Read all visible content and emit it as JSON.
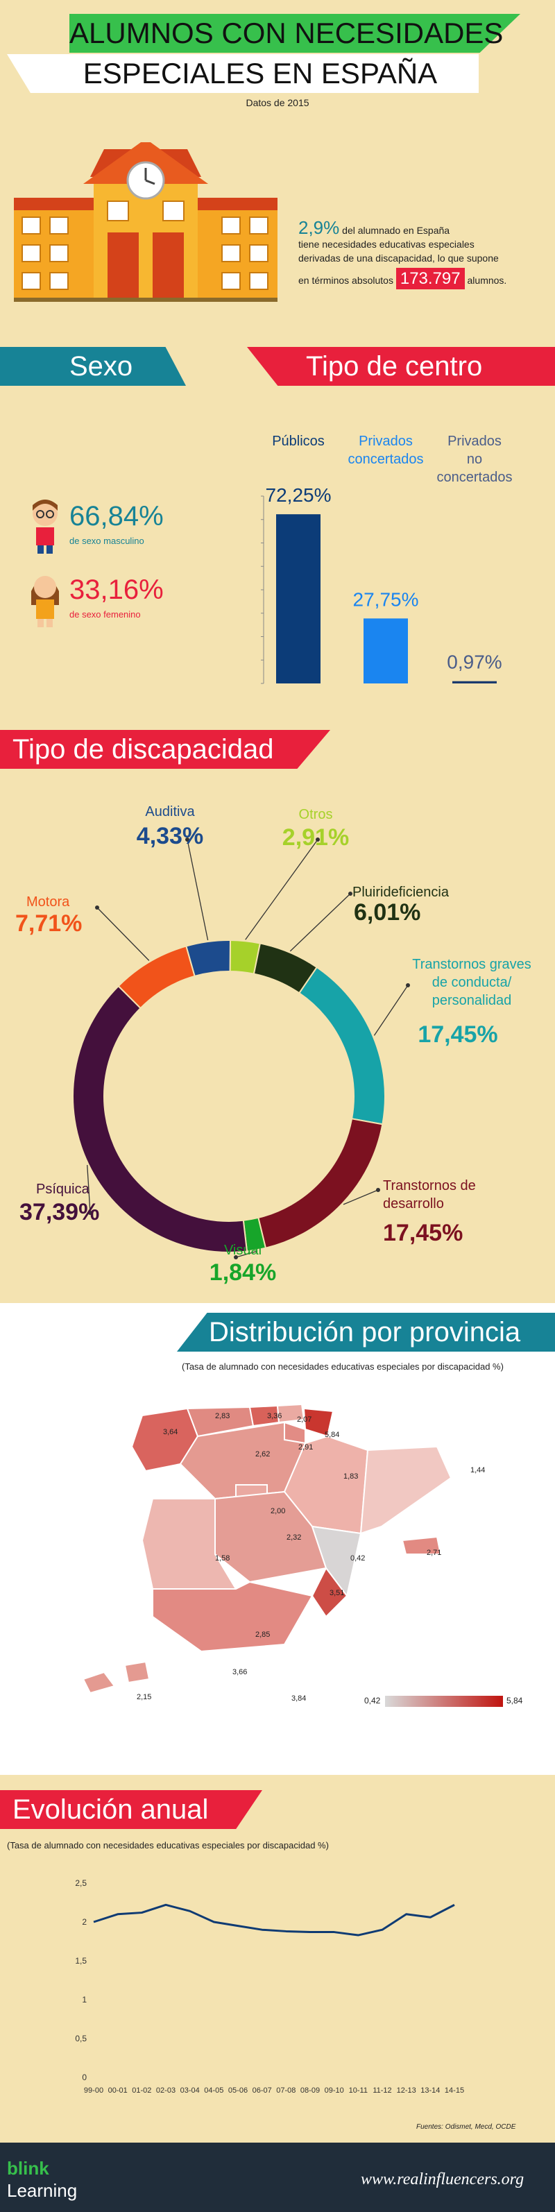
{
  "header": {
    "title_line1": "ALUMNOS CON NECESIDADES",
    "title_line2": "ESPECIALES EN ESPAÑA",
    "date": "Datos de 2015"
  },
  "intro": {
    "percent": "2,9%",
    "text_line1": " del alumnado en España",
    "text_line2": "tiene necesidades educativas especiales",
    "text_line3": "derivadas de una discapacidad, lo que supone",
    "text_line4a": "en términos absolutos",
    "total": "173.797",
    "text_line4b": "alumnos."
  },
  "sexo": {
    "banner": "Sexo",
    "male_pct": "66,84%",
    "male_label": "de sexo masculino",
    "female_pct": "33,16%",
    "female_label": "de sexo femenino"
  },
  "centro": {
    "banner": "Tipo de centro"
  },
  "colors": {
    "bar_publicos": "#0c3c78",
    "bar_concertados": "#1a85f0",
    "bar_no_concertados": "#1a3a6e",
    "teal": "#178396",
    "red": "#e8203c"
  },
  "discapacidad": {
    "banner": "Tipo de discapacidad"
  },
  "provincia": {
    "banner": "Distribución por provincia",
    "subtitle": "(Tasa de alumnado con necesidades educativas especiales por discapacidad %)",
    "values": [
      {
        "label": "3,64"
      },
      {
        "label": "2,83"
      },
      {
        "label": "3,36"
      },
      {
        "label": "2,07"
      },
      {
        "label": "5,84"
      },
      {
        "label": "2,91"
      },
      {
        "label": "2,62"
      },
      {
        "label": "1,83"
      },
      {
        "label": "1,44"
      },
      {
        "label": "2,00"
      },
      {
        "label": "2,32"
      },
      {
        "label": "1,58"
      },
      {
        "label": "0,42"
      },
      {
        "label": "2,71"
      },
      {
        "label": "3,51"
      },
      {
        "label": "2,85"
      },
      {
        "label": "3,66"
      },
      {
        "label": "2,15"
      },
      {
        "label": "3,84"
      }
    ],
    "legend_min": "0,42",
    "legend_max": "5,84"
  },
  "evolucion": {
    "banner": "Evolución anual",
    "subtitle": "(Tasa de alumnado con necesidades educativas especiales por discapacidad %)",
    "sources": "Fuentes: Odismet, Mecd, OCDE"
  },
  "footer": {
    "brand_line1": "blink",
    "brand_line2": "Learning",
    "url": "www.realinfluencers.org"
  },
  "chart_data": [
    {
      "type": "bar",
      "categories": [
        "Públicos",
        "Privados concertados",
        "Privados no concertados"
      ],
      "values": [
        72.25,
        27.75,
        0.97
      ],
      "value_labels": [
        "72,25%",
        "27,75%",
        "0,97%"
      ]
    },
    {
      "type": "pie",
      "labels": [
        "Otros",
        "Pluirideficiencia",
        "Transtornos graves de conducta/ personalidad",
        "Transtornos de desarrollo",
        "Visual",
        "Psíquica",
        "Motora",
        "Auditiva"
      ],
      "values": [
        2.91,
        6.01,
        17.45,
        17.45,
        1.84,
        37.39,
        7.71,
        4.33
      ],
      "value_labels": [
        "2,91%",
        "6,01%",
        "17,45%",
        "17,45%",
        "1,84%",
        "37,39%",
        "7,71%",
        "4,33%"
      ],
      "colors": [
        "#a6d12a",
        "#203214",
        "#17a3a8",
        "#7c1120",
        "#17a52a",
        "#44103c",
        "#f1531a",
        "#1c4b8d"
      ]
    },
    {
      "type": "line",
      "x": [
        "99-00",
        "00-01",
        "01-02",
        "02-03",
        "03-04",
        "04-05",
        "05-06",
        "06-07",
        "07-08",
        "08-09",
        "09-10",
        "10-11",
        "11-12",
        "12-13",
        "13-14",
        "14-15"
      ],
      "y": [
        2.0,
        2.1,
        2.12,
        2.22,
        2.14,
        2.0,
        1.95,
        1.9,
        1.88,
        1.87,
        1.87,
        1.83,
        1.9,
        2.1,
        2.06,
        2.22
      ],
      "yticks": [
        "0",
        "0,5",
        "1",
        "1,5",
        "2",
        "2,5"
      ],
      "ylim": [
        0,
        2.5
      ]
    }
  ]
}
